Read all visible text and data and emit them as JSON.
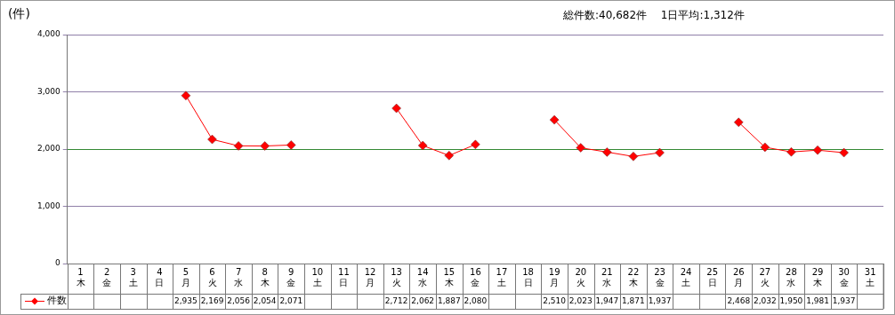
{
  "chart_data": {
    "type": "line",
    "ylabel": "(件)",
    "annotations": [
      "総件数:40,682件　 1日平均:1,312件"
    ],
    "categories": [
      "1\n木",
      "2\n金",
      "3\n土",
      "4\n日",
      "5\n月",
      "6\n火",
      "7\n水",
      "8\n木",
      "9\n金",
      "10\n土",
      "11\n日",
      "12\n月",
      "13\n火",
      "14\n水",
      "15\n木",
      "16\n金",
      "17\n土",
      "18\n日",
      "19\n月",
      "20\n火",
      "21\n水",
      "22\n木",
      "23\n金",
      "24\n土",
      "25\n日",
      "26\n月",
      "27\n火",
      "28\n水",
      "29\n木",
      "30\n金",
      "31\n土"
    ],
    "series": [
      {
        "name": "件数",
        "color": "#ff0000",
        "values": [
          null,
          null,
          null,
          null,
          2935,
          2169,
          2056,
          2054,
          2071,
          null,
          null,
          null,
          2712,
          2062,
          1887,
          2080,
          null,
          null,
          2510,
          2023,
          1947,
          1871,
          1937,
          null,
          null,
          2468,
          2032,
          1950,
          1981,
          1937,
          null
        ],
        "value_labels": [
          null,
          null,
          null,
          null,
          "2,935",
          "2,169",
          "2,056",
          "2,054",
          "2,071",
          null,
          null,
          null,
          "2,712",
          "2,062",
          "1,887",
          "2,080",
          null,
          null,
          "2,510",
          "2,023",
          "1,947",
          "1,871",
          "1,937",
          null,
          null,
          "2,468",
          "2,032",
          "1,950",
          "1,981",
          "1,937",
          null
        ]
      }
    ],
    "ylim": [
      0,
      4000
    ],
    "yticks": [
      {
        "value": 0,
        "label": "0"
      },
      {
        "value": 1000,
        "label": "1,000"
      },
      {
        "value": 2000,
        "label": "2,000"
      },
      {
        "value": 3000,
        "label": "3,000"
      },
      {
        "value": 4000,
        "label": "4,000"
      }
    ],
    "grid": "y",
    "ref_lines": [
      {
        "axis": "y",
        "value": 2000,
        "color": "#338833"
      }
    ],
    "marker": "diamond",
    "legend": "bottom left"
  }
}
